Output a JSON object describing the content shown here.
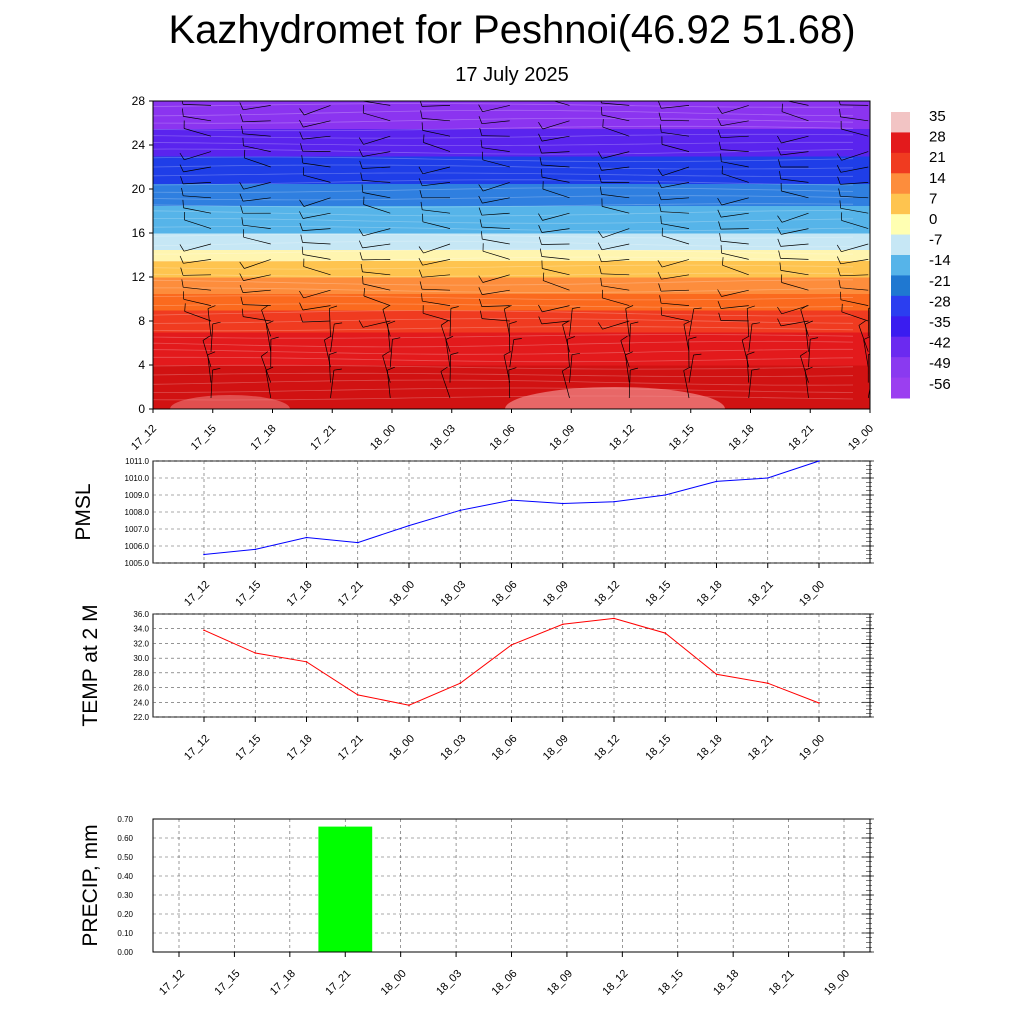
{
  "header": {
    "title": "Kazhydromet for Peshnoi(46.92 51.68)",
    "subtitle": "17 July 2025"
  },
  "chart_data": [
    {
      "id": "cross-section",
      "type": "heatmap",
      "x_ticks": [
        "17_12",
        "17_15",
        "17_18",
        "17_21",
        "18_00",
        "18_03",
        "18_06",
        "18_09",
        "18_12",
        "18_15",
        "18_18",
        "18_21",
        "19_00"
      ],
      "y_ticks": [
        "0",
        "4",
        "8",
        "12",
        "16",
        "20",
        "24",
        "28"
      ],
      "ylim": [
        0,
        28
      ],
      "colorbar_labels": [
        "35",
        "28",
        "21",
        "14",
        "7",
        "0",
        "-7",
        "-14",
        "-21",
        "-28",
        "-35",
        "-42",
        "-49",
        "-56"
      ],
      "colorbar_colors": [
        "#f2c4c4",
        "#e31a1c",
        "#f03b20",
        "#fd8d3c",
        "#fec44f",
        "#ffffb2",
        "#c6e7f5",
        "#56b4e9",
        "#1f78d1",
        "#2b3ef0",
        "#3a1cf0",
        "#6b2af0",
        "#8a3af0",
        "#9b3ff0"
      ],
      "layers": [
        {
          "level": 0,
          "color": "#d11212"
        },
        {
          "level": 4,
          "color": "#e31a1c"
        },
        {
          "level": 7,
          "color": "#f03b20"
        },
        {
          "level": 9,
          "color": "#fb6a1e"
        },
        {
          "level": 10.5,
          "color": "#fd8d3c"
        },
        {
          "level": 12,
          "color": "#fec44f"
        },
        {
          "level": 13.5,
          "color": "#fff5b0"
        },
        {
          "level": 14.5,
          "color": "#c6e7f5"
        },
        {
          "level": 16,
          "color": "#56b4e9"
        },
        {
          "level": 18.5,
          "color": "#2f7fe0"
        },
        {
          "level": 20.5,
          "color": "#1f3ee8"
        },
        {
          "level": 23,
          "color": "#5a24ee"
        },
        {
          "level": 25.5,
          "color": "#8b34f0"
        },
        {
          "level": 28,
          "color": "#8b34f0"
        }
      ]
    },
    {
      "id": "pmsl",
      "type": "line",
      "ylabel": "PMSL",
      "ylim": [
        1005.0,
        1011.0
      ],
      "y_ticks": [
        "1005.0",
        "1006.0",
        "1007.0",
        "1008.0",
        "1009.0",
        "1010.0",
        "1011.0"
      ],
      "categories": [
        "17_12",
        "17_15",
        "17_18",
        "17_21",
        "18_00",
        "18_03",
        "18_06",
        "18_09",
        "18_12",
        "18_15",
        "18_18",
        "18_21",
        "19_00"
      ],
      "values": [
        1005.5,
        1005.8,
        1006.5,
        1006.2,
        1007.2,
        1008.1,
        1008.7,
        1008.5,
        1008.6,
        1009.0,
        1009.8,
        1010.0,
        1011.0
      ],
      "color": "#0000ff"
    },
    {
      "id": "temp",
      "type": "line",
      "ylabel": "TEMP at 2 M",
      "ylim": [
        22.0,
        36.0
      ],
      "y_ticks": [
        "22.0",
        "24.0",
        "26.0",
        "28.0",
        "30.0",
        "32.0",
        "34.0",
        "36.0"
      ],
      "categories": [
        "17_12",
        "17_15",
        "17_18",
        "17_21",
        "18_00",
        "18_03",
        "18_06",
        "18_09",
        "18_12",
        "18_15",
        "18_18",
        "18_21",
        "19_00"
      ],
      "values": [
        33.8,
        30.7,
        29.5,
        25.0,
        23.6,
        26.6,
        31.8,
        34.6,
        35.4,
        33.4,
        27.8,
        26.6,
        23.9
      ],
      "color": "#ff0000"
    },
    {
      "id": "precip",
      "type": "bar",
      "ylabel": "PRECIP, mm",
      "ylim": [
        0,
        0.7
      ],
      "y_ticks": [
        "0.00",
        "0.10",
        "0.20",
        "0.30",
        "0.40",
        "0.50",
        "0.60",
        "0.70"
      ],
      "categories": [
        "17_12",
        "17_15",
        "17_18",
        "17_21",
        "18_00",
        "18_03",
        "18_06",
        "18_09",
        "18_12",
        "18_15",
        "18_18",
        "18_21",
        "19_00"
      ],
      "values": [
        0,
        0,
        0,
        0.66,
        0,
        0,
        0,
        0,
        0,
        0,
        0,
        0,
        0
      ],
      "color": "#00ff00"
    }
  ]
}
